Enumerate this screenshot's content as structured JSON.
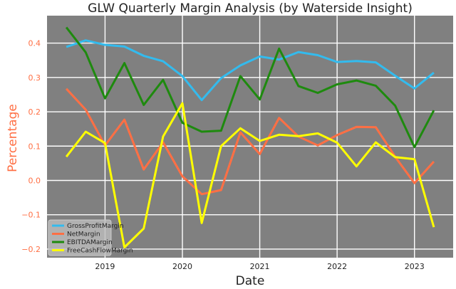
{
  "chart_data": {
    "type": "line",
    "title": "GLW Quarterly Margin Analysis (by Waterside Insight)",
    "xlabel": "Date",
    "ylabel": "Percentage",
    "xlim": [
      2018.25,
      2023.5
    ],
    "ylim": [
      -0.225,
      0.48
    ],
    "xticks": [
      {
        "value": 2019,
        "label": "2019"
      },
      {
        "value": 2020,
        "label": "2020"
      },
      {
        "value": 2021,
        "label": "2021"
      },
      {
        "value": 2022,
        "label": "2022"
      },
      {
        "value": 2023,
        "label": "2023"
      }
    ],
    "yticks": [
      {
        "value": 0.4,
        "label": "0.4"
      },
      {
        "value": 0.3,
        "label": "0.3"
      },
      {
        "value": 0.2,
        "label": "0.2"
      },
      {
        "value": 0.1,
        "label": "0.1"
      },
      {
        "value": 0.0,
        "label": "0.0"
      },
      {
        "value": -0.1,
        "label": "−0.1"
      },
      {
        "value": -0.2,
        "label": "−0.2"
      }
    ],
    "grid": true,
    "legend_position": "lower-left",
    "x": [
      2018.5,
      2018.75,
      2019.0,
      2019.25,
      2019.5,
      2019.75,
      2020.0,
      2020.25,
      2020.5,
      2020.75,
      2021.0,
      2021.25,
      2021.5,
      2021.75,
      2022.0,
      2022.25,
      2022.5,
      2022.75,
      2023.0,
      2023.25
    ],
    "series": [
      {
        "name": "GrossProfitMargin",
        "color": "#33bbee",
        "values": [
          0.389,
          0.408,
          0.395,
          0.39,
          0.363,
          0.347,
          0.304,
          0.234,
          0.298,
          0.335,
          0.361,
          0.352,
          0.374,
          0.365,
          0.345,
          0.348,
          0.344,
          0.305,
          0.268,
          0.314
        ]
      },
      {
        "name": "NetMargin",
        "color": "#ff6f44",
        "values": [
          0.267,
          0.206,
          0.102,
          0.177,
          0.032,
          0.111,
          0.012,
          -0.04,
          -0.028,
          0.14,
          0.077,
          0.182,
          0.128,
          0.102,
          0.132,
          0.156,
          0.155,
          0.069,
          -0.008,
          0.055
        ]
      },
      {
        "name": "EBITDAMargin",
        "color": "#1e8a0e",
        "values": [
          0.446,
          0.373,
          0.239,
          0.342,
          0.22,
          0.293,
          0.168,
          0.142,
          0.145,
          0.304,
          0.236,
          0.384,
          0.275,
          0.255,
          0.28,
          0.291,
          0.276,
          0.218,
          0.097,
          0.204
        ]
      },
      {
        "name": "FreeCashFlowMargin",
        "color": "#ffff00",
        "values": [
          0.069,
          0.142,
          0.109,
          -0.195,
          -0.14,
          0.128,
          0.225,
          -0.124,
          0.1,
          0.152,
          0.115,
          0.133,
          0.129,
          0.137,
          0.11,
          0.041,
          0.111,
          0.068,
          0.062,
          -0.136
        ]
      }
    ],
    "colors": {
      "plot_background": "#808080",
      "grid": "#ffffff",
      "axis_text": "#ff6f44",
      "ylabel": "#ff6f44",
      "xlabel": "#222222"
    }
  }
}
